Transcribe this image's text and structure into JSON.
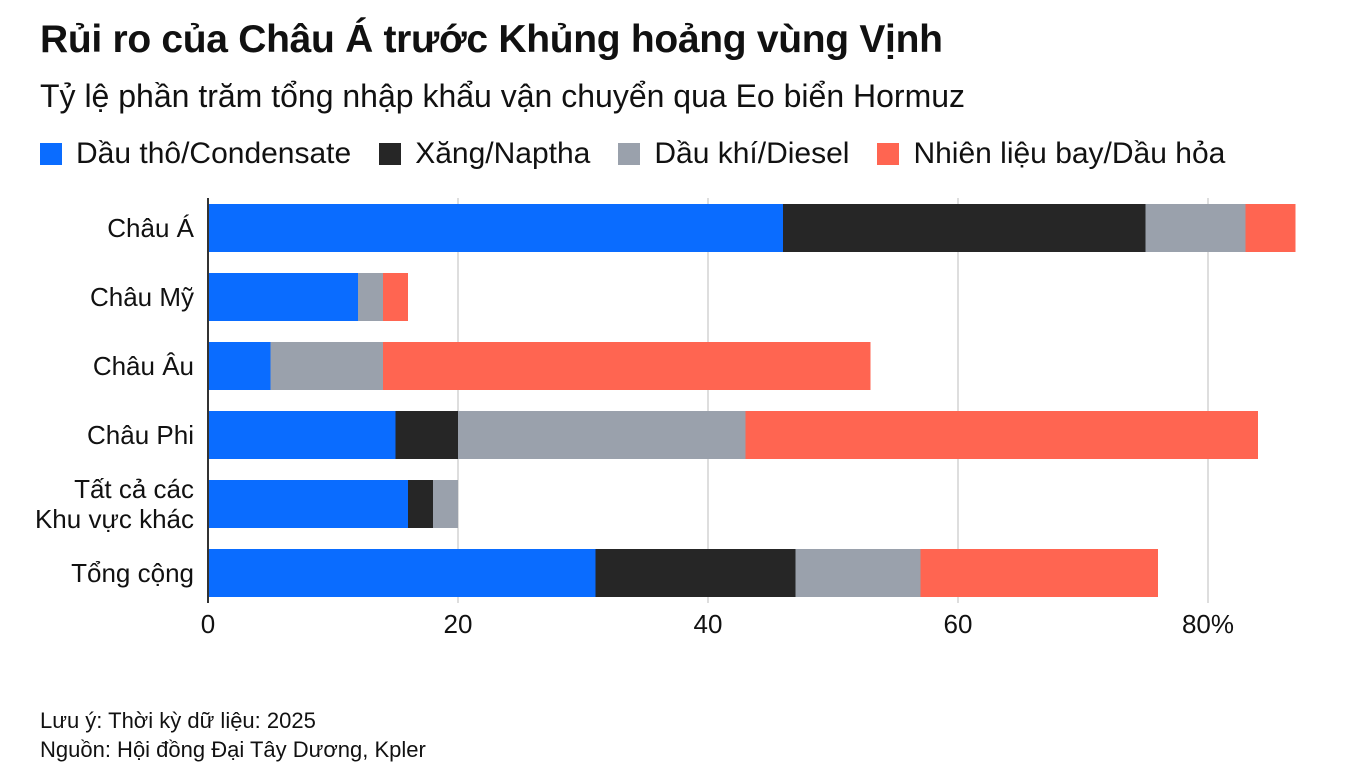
{
  "chart_data": {
    "type": "bar",
    "orientation": "horizontal",
    "stacked": true,
    "title": "Rủi ro của Châu Á trước Khủng hoảng vùng Vịnh",
    "subtitle": "Tỷ lệ phần trăm tổng nhập khẩu vận chuyển qua Eo biển Hormuz",
    "categories": [
      [
        "Châu Á"
      ],
      [
        "Châu Mỹ"
      ],
      [
        "Châu Âu"
      ],
      [
        "Châu Phi"
      ],
      [
        "Tất cả các",
        "Khu vực khác"
      ],
      [
        "Tổng cộng"
      ]
    ],
    "series": [
      {
        "name": "Dầu thô/Condensate",
        "color": "#0a6cff",
        "values": [
          46,
          12,
          5,
          15,
          16,
          31
        ]
      },
      {
        "name": "Xăng/Naptha",
        "color": "#262626",
        "values": [
          29,
          0,
          0,
          5,
          2,
          16
        ]
      },
      {
        "name": "Dầu khí/Diesel",
        "color": "#9aa1ac",
        "values": [
          8,
          2,
          9,
          23,
          2,
          10
        ]
      },
      {
        "name": "Nhiên liệu bay/Dầu hỏa",
        "color": "#ff6551",
        "values": [
          4,
          2,
          39,
          41,
          0,
          19
        ]
      }
    ],
    "xlim": [
      0,
      85
    ],
    "xticks": [
      0,
      20,
      40,
      60,
      80
    ],
    "xtick_labels": [
      "0",
      "20",
      "40",
      "60",
      "80%"
    ],
    "grid": true,
    "legend_position": "top"
  },
  "footer": {
    "note": "Lưu ý: Thời kỳ dữ liệu: 2025",
    "source": "Nguồn: Hội đồng Đại Tây Dương, Kpler"
  }
}
